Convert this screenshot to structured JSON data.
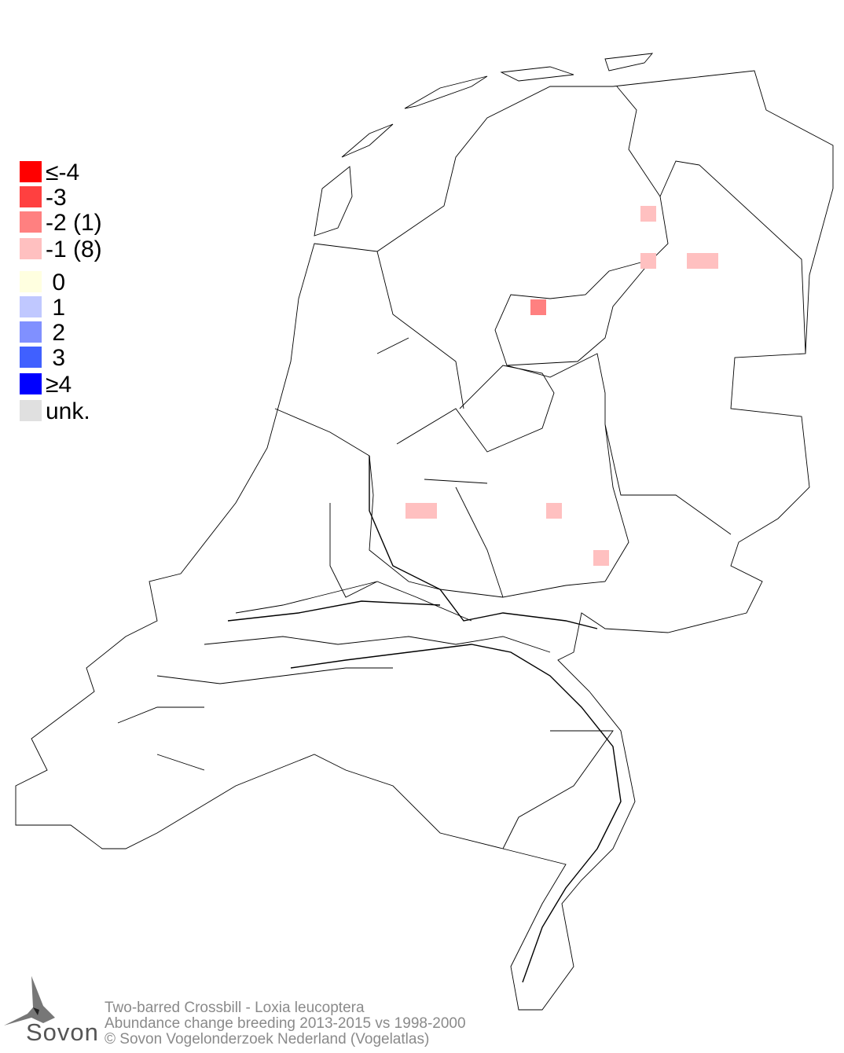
{
  "legend": [
    {
      "label": "≤-4",
      "color": "#ff0000"
    },
    {
      "label": "-3",
      "color": "#ff4040"
    },
    {
      "label": "-2 (1)",
      "color": "#ff8080"
    },
    {
      "label": "-1 (8)",
      "color": "#ffc0c0"
    },
    {
      "label": " 0",
      "color": "#ffffe0"
    },
    {
      "label": " 1",
      "color": "#c0c8ff"
    },
    {
      "label": " 2",
      "color": "#8090ff"
    },
    {
      "label": " 3",
      "color": "#4060ff"
    },
    {
      "label": "≥4",
      "color": "#0000ff"
    },
    {
      "label": "unk.",
      "color": "#e0e0e0"
    }
  ],
  "cells": [
    {
      "value": -1
    },
    {
      "value": -1
    },
    {
      "value": -1
    },
    {
      "value": -1
    },
    {
      "value": -2
    },
    {
      "value": -1
    },
    {
      "value": -1
    },
    {
      "value": -1
    },
    {
      "value": -1
    }
  ],
  "footer": {
    "species": "Two-barred Crossbill - Loxia leucoptera",
    "subtitle": "Abundance change breeding  2013-2015 vs 1998-2000",
    "copyright": "© Sovon Vogelonderzoek Nederland (Vogelatlas)"
  },
  "logo": {
    "text": "Sovon",
    "icon": "swallow-icon"
  }
}
